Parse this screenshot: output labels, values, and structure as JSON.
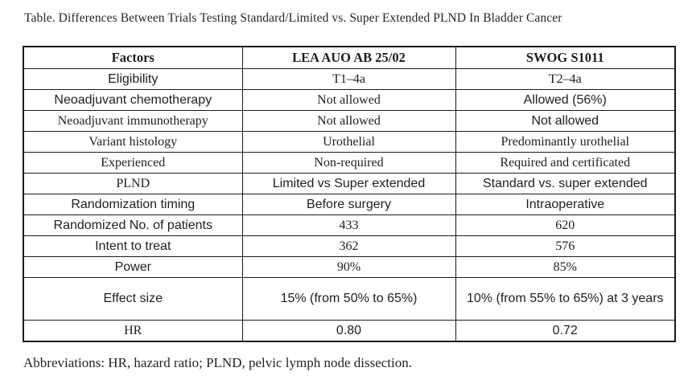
{
  "title": "Table. Differences Between Trials Testing Standard/Limited vs. Super Extended PLND In Bladder Cancer",
  "table": {
    "headers": [
      "Factors",
      "LEA AUO AB 25/02",
      "SWOG S1011"
    ],
    "rows": [
      {
        "factor": "Eligibility",
        "lea": "T1–4a",
        "swog": "T2–4a"
      },
      {
        "factor": "Neoadjuvant chemotherapy",
        "lea": "Not allowed",
        "swog": "Allowed (56%)"
      },
      {
        "factor": "Neoadjuvant immunotherapy",
        "lea": "Not allowed",
        "swog": "Not allowed"
      },
      {
        "factor": "Variant histology",
        "lea": "Urothelial",
        "swog": "Predominantly urothelial"
      },
      {
        "factor": "Experienced",
        "lea": "Non-required",
        "swog": "Required and certificated"
      },
      {
        "factor": "PLND",
        "lea": "Limited vs Super extended",
        "swog": "Standard vs. super extended"
      },
      {
        "factor": "Randomization timing",
        "lea": "Before surgery",
        "swog": "Intraoperative"
      },
      {
        "factor": "Randomized No. of patients",
        "lea": "433",
        "swog": "620"
      },
      {
        "factor": "Intent to treat",
        "lea": "362",
        "swog": "576"
      },
      {
        "factor": "Power",
        "lea": "90%",
        "swog": "85%"
      },
      {
        "factor": "Effect size",
        "lea": "15% (from 50% to 65%)",
        "swog": "10% (from 55% to 65%) at 3 years"
      },
      {
        "factor": "HR",
        "lea": "0.80",
        "swog": "0.72"
      }
    ]
  },
  "footnote": "Abbreviations: HR, hazard ratio; PLND, pelvic lymph node dissection.",
  "colors": {
    "background": "#ffffff",
    "text": "#1e1e1e",
    "border": "#1b1b1b"
  }
}
